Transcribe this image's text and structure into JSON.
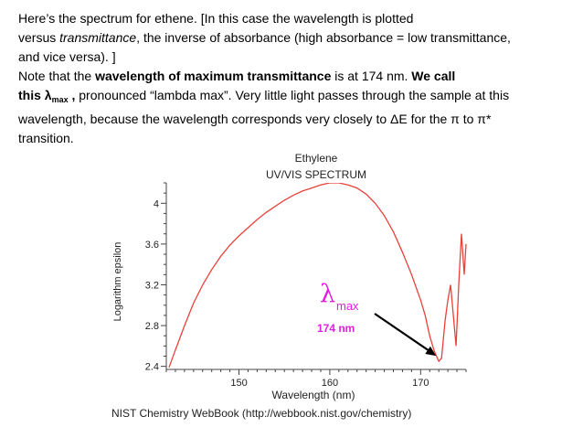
{
  "text": {
    "p1_a": "Here’s the spectrum for ethene. [In this case the wavelength is plotted",
    "p1_b1": "versus ",
    "p1_b2": "transmittance",
    "p1_b3": ", the inverse of absorbance (high absorbance = low transmittance,",
    "p1_c": "and vice versa). ]",
    "p2_a1": "Note that the ",
    "p2_a2": "wavelength of maximum transmittance",
    "p2_a3": " is at 174 nm. ",
    "p2_a4": "We call",
    "p2_b1": "this  λ",
    "p2_b2": "max",
    "p2_b3": " ,",
    "p2_b4": " pronounced “lambda max”. Very little light passes through the sample at this",
    "p2_c": "wavelength, because the wavelength corresponds very closely to ΔE for the π to π*",
    "p2_d": "transition."
  },
  "chart_data": {
    "type": "line",
    "title": "Ethylene",
    "subtitle": "UV/VIS SPECTRUM",
    "xlabel": "Wavelength (nm)",
    "ylabel": "Logarithm epsilon",
    "xlim": [
      142,
      175
    ],
    "ylim": [
      2.37,
      4.2
    ],
    "xticks": [
      150,
      160,
      170
    ],
    "yticks": [
      2.4,
      2.8,
      3.2,
      3.6,
      4.0
    ],
    "ytick_labels": [
      "2.4",
      "2.8",
      "3.2",
      "3.6",
      "4"
    ],
    "series": [
      {
        "color": "#e8413a",
        "x": [
          142.3,
          143,
          144,
          145,
          146,
          147,
          148,
          149,
          150,
          151,
          152,
          153,
          154,
          155,
          156,
          157,
          158,
          159,
          160,
          161,
          162,
          163,
          164,
          165,
          166,
          167,
          168,
          169,
          170,
          170.5,
          171,
          171.5,
          172,
          172.3,
          172.7,
          173,
          173.3,
          173.6,
          173.9,
          174.2,
          174.5,
          174.8,
          175
        ],
        "y": [
          2.39,
          2.56,
          2.8,
          3.02,
          3.2,
          3.35,
          3.48,
          3.59,
          3.68,
          3.76,
          3.84,
          3.91,
          3.97,
          4.03,
          4.08,
          4.12,
          4.15,
          4.18,
          4.2,
          4.2,
          4.18,
          4.15,
          4.09,
          4.0,
          3.88,
          3.72,
          3.52,
          3.3,
          3.05,
          2.9,
          2.7,
          2.55,
          2.45,
          2.48,
          2.85,
          3.05,
          3.2,
          2.9,
          2.6,
          3.2,
          3.7,
          3.3,
          3.6
        ]
      }
    ],
    "annotations": {
      "lambda_symbol": "λ",
      "lambda_sub": "max",
      "label": "174 nm",
      "arrow_target_x": 172.2,
      "arrow_target_y": 2.45,
      "color": "#e020e0"
    },
    "footer": "NIST Chemistry WebBook (http://webbook.nist.gov/chemistry)"
  }
}
